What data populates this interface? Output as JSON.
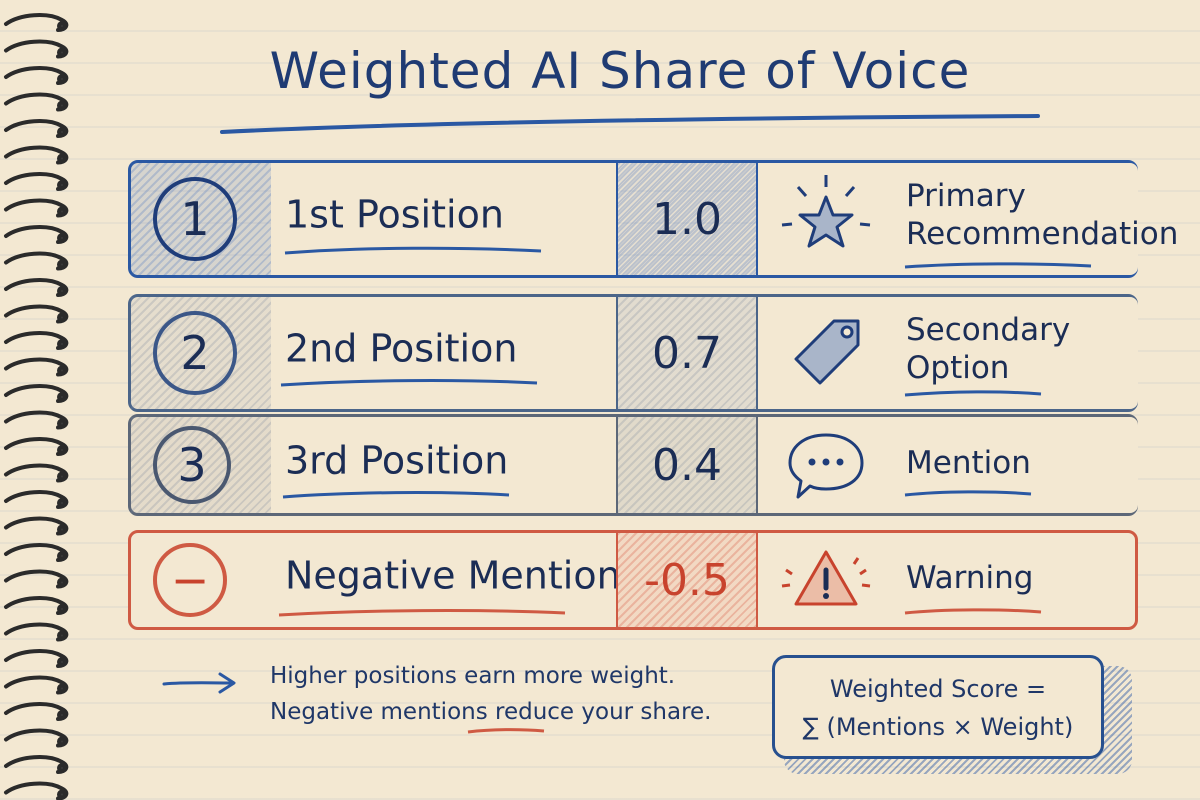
{
  "title": "Weighted AI Share of Voice",
  "rows": [
    {
      "number": "1",
      "label": "1st Position",
      "weight": "1.0",
      "meaning_line1": "Primary",
      "meaning_line2": "Recommendation",
      "icon": "star-icon"
    },
    {
      "number": "2",
      "label": "2nd Position",
      "weight": "0.7",
      "meaning_line1": "Secondary",
      "meaning_line2": "Option",
      "icon": "tag-icon"
    },
    {
      "number": "3",
      "label": "3rd Position",
      "weight": "0.4",
      "meaning_line1": "Mention",
      "meaning_line2": "",
      "icon": "speech-bubble-icon"
    },
    {
      "number": "−",
      "label": "Negative Mention",
      "weight": "-0.5",
      "meaning_line1": "Warning",
      "meaning_line2": "",
      "icon": "warning-icon"
    }
  ],
  "footer": {
    "line1": "Higher positions earn more weight.",
    "line2": "Negative mentions reduce your share."
  },
  "formula": {
    "line1": "Weighted Score =",
    "line2": "∑ (Mentions × Weight)"
  },
  "colors": {
    "ink_blue": "#1f3b73",
    "accent_blue": "#2a58a3",
    "accent_red": "#cf5a43",
    "paper": "#f3e8d2"
  }
}
